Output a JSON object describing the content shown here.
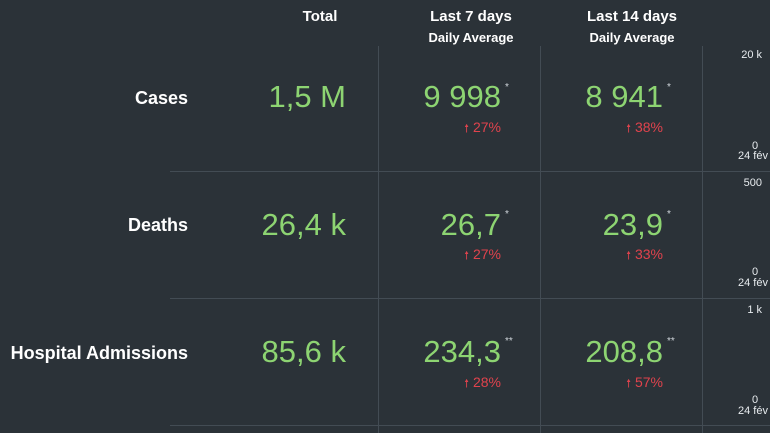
{
  "headers": {
    "total": "Total",
    "last7": "Last 7 days",
    "last7_sub": "Daily Average",
    "last14": "Last 14 days",
    "last14_sub": "Daily Average"
  },
  "rows": [
    {
      "label": "Cases",
      "total": "1,5 M",
      "avg7": "9 998",
      "avg7_mark": "*",
      "chg7": "27%",
      "avg14": "8 941",
      "avg14_mark": "*",
      "chg14": "38%",
      "axis_top": "20 k",
      "axis_zero": "0",
      "axis_date": "24 fév"
    },
    {
      "label": "Deaths",
      "total": "26,4 k",
      "avg7": "26,7",
      "avg7_mark": "*",
      "chg7": "27%",
      "avg14": "23,9",
      "avg14_mark": "*",
      "chg14": "33%",
      "axis_top": "500",
      "axis_zero": "0",
      "axis_date": "24 fév"
    },
    {
      "label": "Hospital Admissions",
      "total": "85,6 k",
      "avg7": "234,3",
      "avg7_mark": "**",
      "chg7": "28%",
      "avg14": "208,8",
      "avg14_mark": "**",
      "chg14": "57%",
      "axis_top": "1 k",
      "axis_zero": "0",
      "axis_date": "24 fév"
    }
  ],
  "icons": {
    "change": "arrow-up-icon"
  },
  "colors": {
    "background": "#2b3238",
    "value_green": "#8dd472",
    "change_red": "#e0434d"
  }
}
